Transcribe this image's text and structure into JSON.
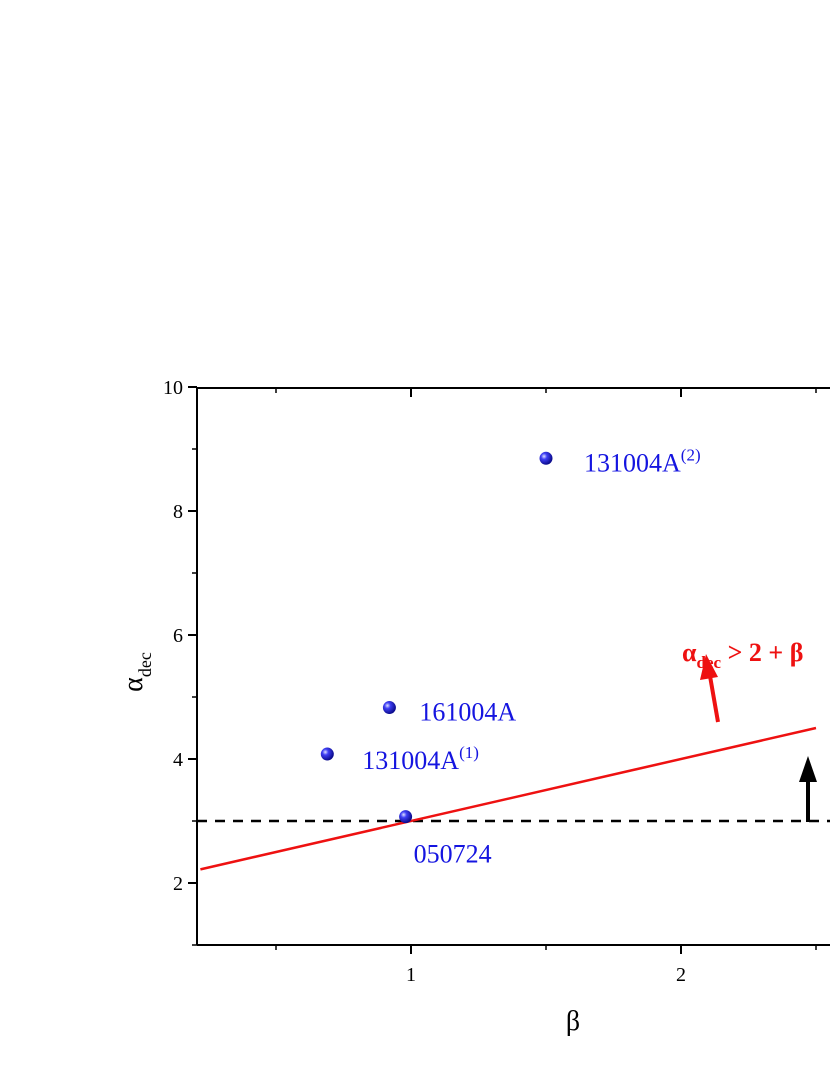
{
  "chart_data": {
    "type": "scatter",
    "title": "",
    "xlabel": "β",
    "ylabel": {
      "main": "α",
      "sub": "dec"
    },
    "xlim": [
      0.22,
      2.5
    ],
    "ylim": [
      1,
      10
    ],
    "xticks": [
      1,
      2
    ],
    "xtick_labels": [
      "1",
      "2"
    ],
    "yticks": [
      2,
      4,
      6,
      8,
      10
    ],
    "ytick_labels": [
      "2",
      "4",
      "6",
      "8",
      "10"
    ],
    "grid": false,
    "points": [
      {
        "label": "131004A",
        "sup": "(2)",
        "x": 1.5,
        "y": 8.85
      },
      {
        "label": "161004A",
        "sup": "",
        "x": 0.92,
        "y": 4.83
      },
      {
        "label": "131004A",
        "sup": "(1)",
        "x": 0.69,
        "y": 4.08
      },
      {
        "label": "050724",
        "sup": "",
        "x": 0.98,
        "y": 3.07
      }
    ],
    "lines": [
      {
        "kind": "closure relation",
        "equation": "α_dec = 2 + β",
        "style": "solid",
        "color": "#ee1111"
      },
      {
        "kind": "horizontal",
        "y": 3,
        "style": "dashed",
        "color": "#000000"
      }
    ],
    "annotation": {
      "alpha": "α",
      "sub": "dec",
      "rest": " > 2 + β",
      "color": "#ee1111"
    },
    "colors": {
      "points": "#1515e0",
      "labels": "#1515e0",
      "closure_line": "#ee1111",
      "dashed_line": "#000000"
    }
  }
}
